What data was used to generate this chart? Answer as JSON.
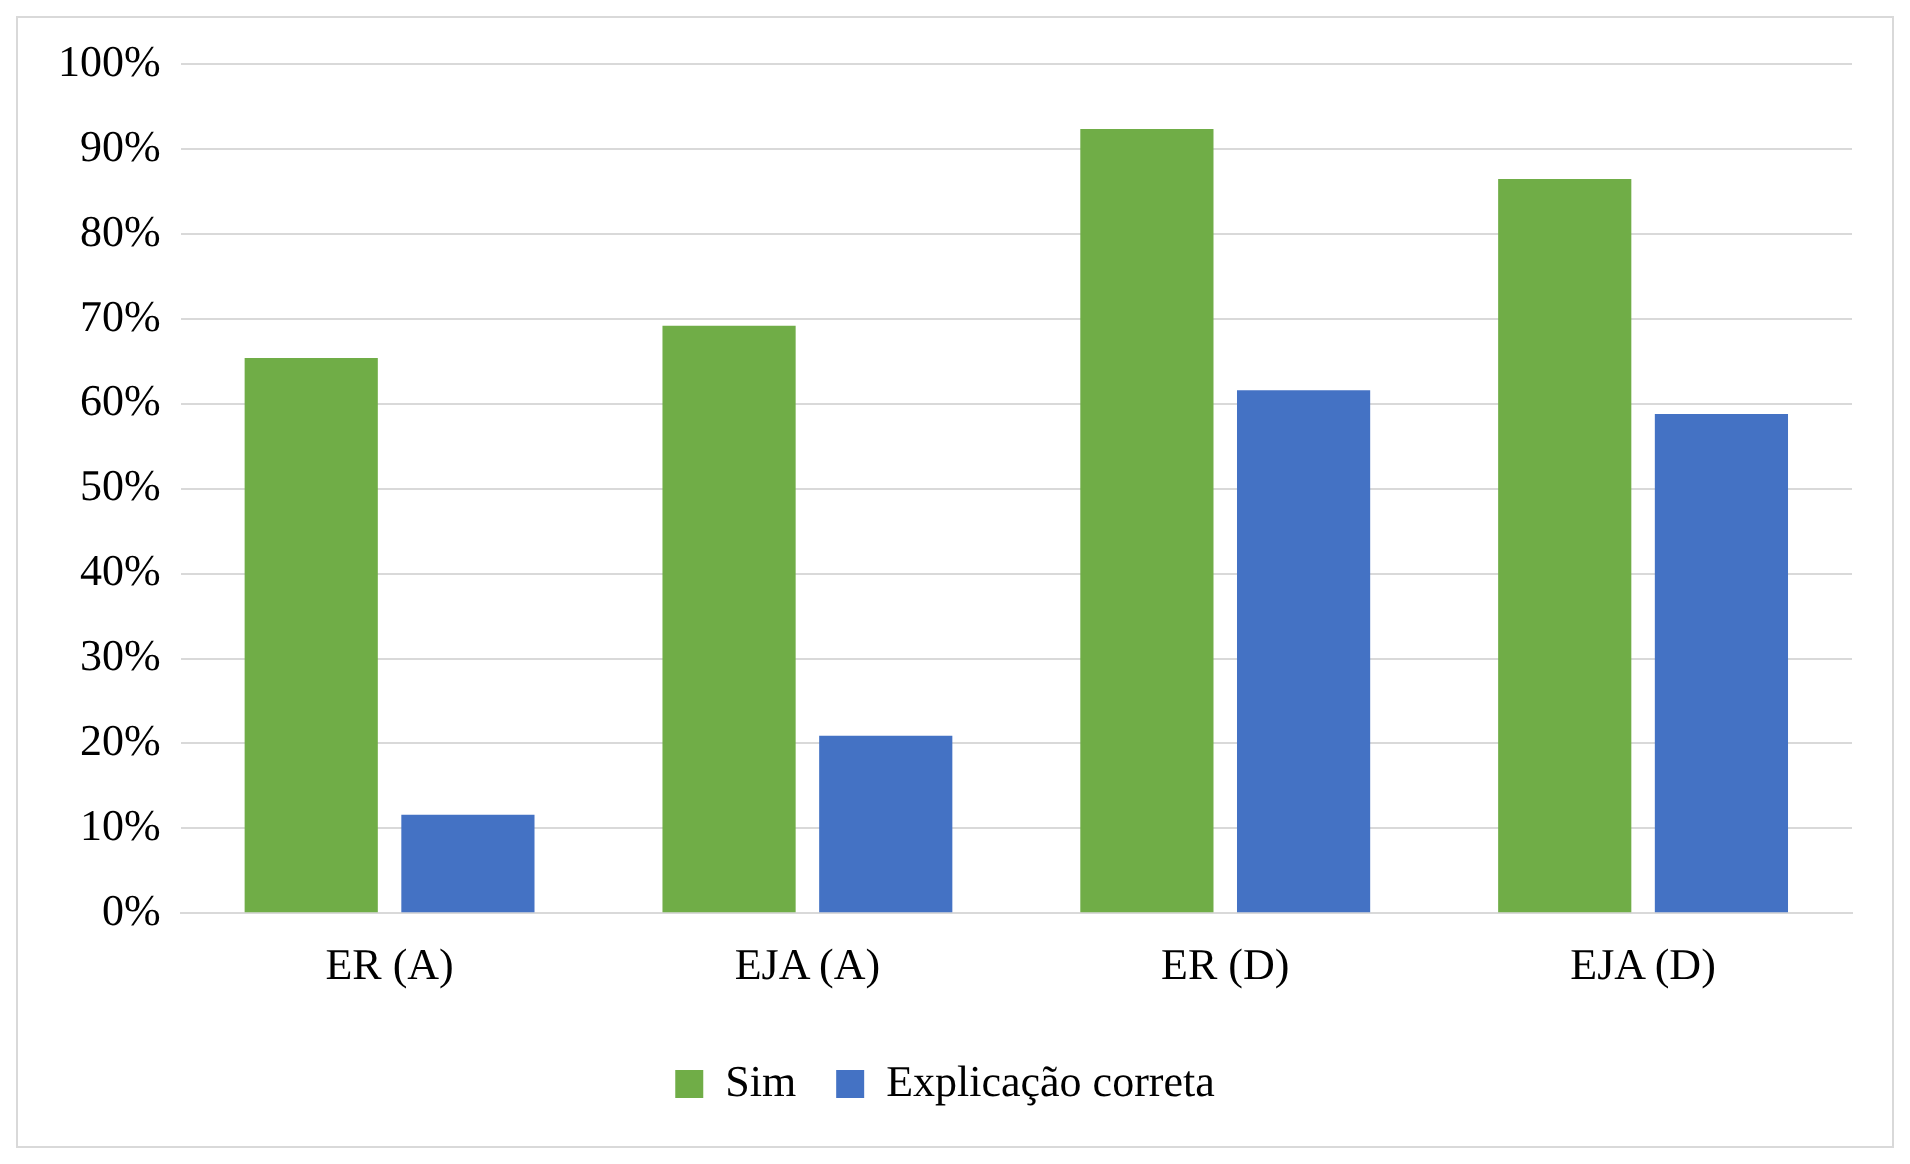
{
  "chart_data": {
    "type": "bar",
    "categories": [
      "ER (A)",
      "EJA (A)",
      "ER (D)",
      "EJA (D)"
    ],
    "series": [
      {
        "name": "Sim",
        "color": "#70ad47",
        "values": [
          65.4,
          69.2,
          92.4,
          86.5
        ]
      },
      {
        "name": "Explicação correta",
        "color": "#4472c4",
        "values": [
          11.6,
          20.9,
          61.6,
          58.8
        ]
      }
    ],
    "ylim": [
      0,
      100
    ],
    "yticks": [
      {
        "value": 0,
        "label": "0%"
      },
      {
        "value": 10,
        "label": "10%"
      },
      {
        "value": 20,
        "label": "20%"
      },
      {
        "value": 30,
        "label": "30%"
      },
      {
        "value": 40,
        "label": "40%"
      },
      {
        "value": 50,
        "label": "50%"
      },
      {
        "value": 60,
        "label": "60%"
      },
      {
        "value": 70,
        "label": "70%"
      },
      {
        "value": 80,
        "label": "80%"
      },
      {
        "value": 90,
        "label": "90%"
      },
      {
        "value": 100,
        "label": "100%"
      }
    ],
    "grid": "y",
    "legend": "bottom"
  }
}
